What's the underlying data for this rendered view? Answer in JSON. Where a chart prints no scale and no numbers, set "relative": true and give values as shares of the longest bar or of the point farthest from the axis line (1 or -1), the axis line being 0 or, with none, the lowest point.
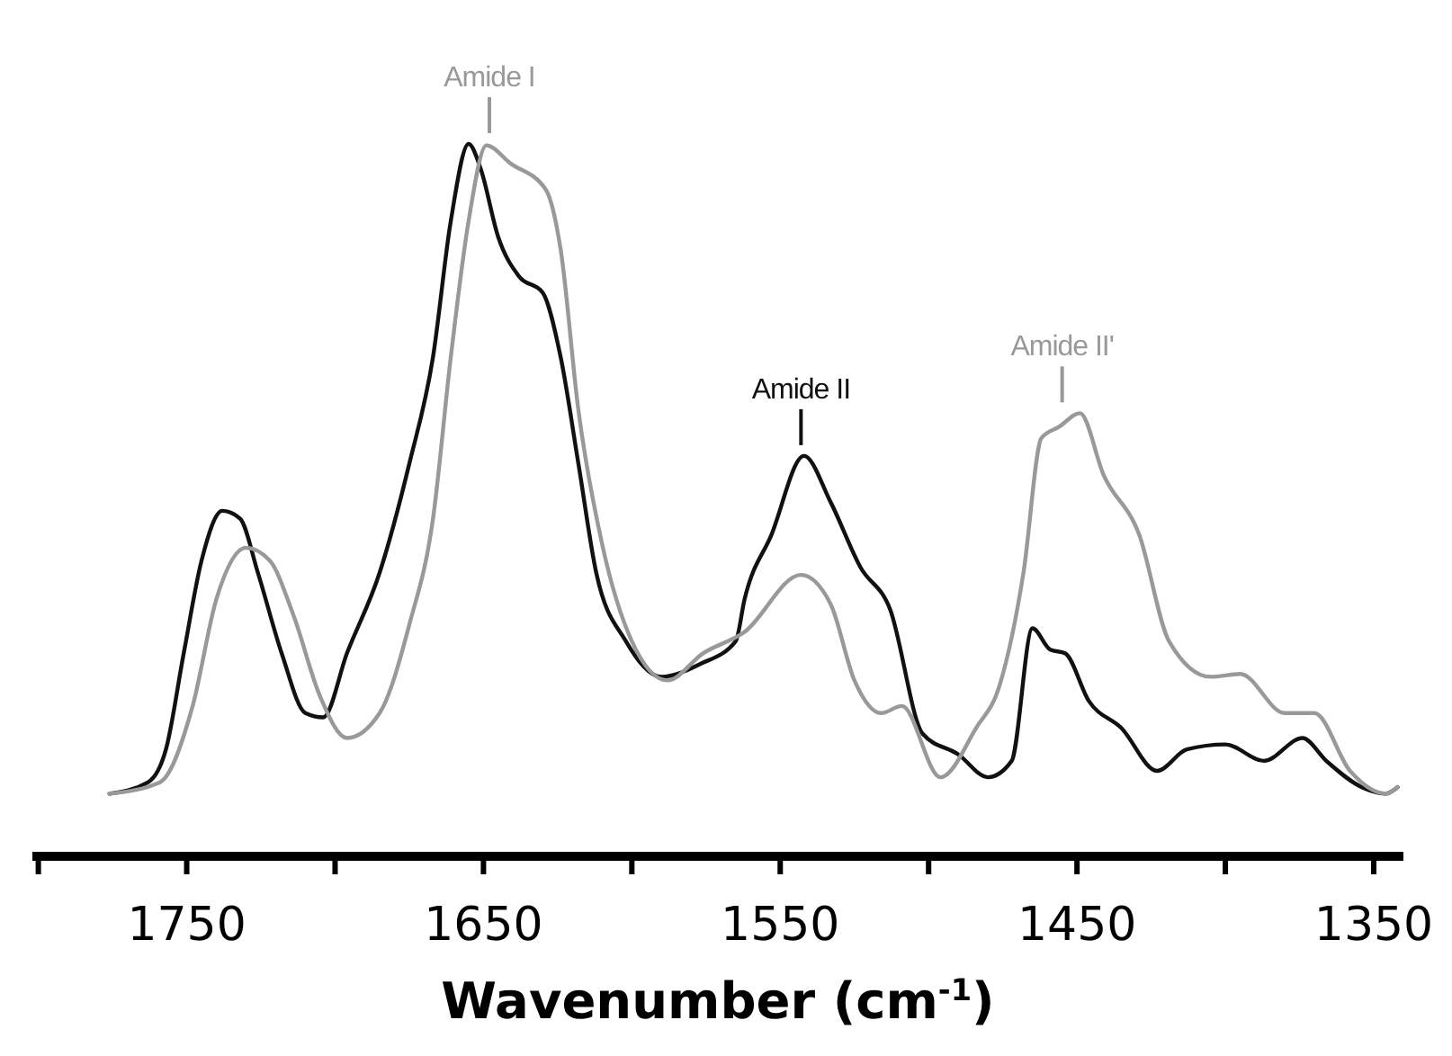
{
  "chart_data": {
    "type": "line",
    "relative": true,
    "xlabel": "Wavenumber (cm$^{-1}$)",
    "xlim": [
      1802,
      1340
    ],
    "xticks": [
      {
        "value": 1800,
        "label": null
      },
      1750,
      {
        "value": 1700,
        "label": null
      },
      1650,
      {
        "value": 1600,
        "label": null
      },
      1550,
      {
        "value": 1500,
        "label": null
      },
      1450,
      {
        "value": 1400,
        "label": null
      },
      1350
    ],
    "series": [
      {
        "color": "#111111",
        "x": [
          1776,
          1763,
          1757,
          1751,
          1745,
          1738,
          1732,
          1726,
          1718,
          1710,
          1704,
          1696,
          1685,
          1675,
          1667,
          1661,
          1655,
          1651,
          1645,
          1638,
          1630,
          1624,
          1618,
          1612,
          1602,
          1590,
          1577,
          1565,
          1562,
          1553,
          1542,
          1533,
          1523,
          1513,
          1502,
          1490,
          1480,
          1472,
          1465,
          1459,
          1454,
          1446,
          1435,
          1423,
          1413,
          1400,
          1387,
          1374,
          1366,
          1354,
          1346,
          1342
        ],
        "values": [
          0.088,
          0.104,
          0.15,
          0.285,
          0.415,
          0.485,
          0.474,
          0.398,
          0.285,
          0.201,
          0.195,
          0.285,
          0.398,
          0.551,
          0.701,
          0.892,
          1,
          0.966,
          0.869,
          0.814,
          0.791,
          0.701,
          0.551,
          0.398,
          0.302,
          0.252,
          0.27,
          0.302,
          0.361,
          0.451,
          0.562,
          0.497,
          0.406,
          0.347,
          0.172,
          0.143,
          0.111,
          0.134,
          0.32,
          0.29,
          0.285,
          0.218,
          0.18,
          0.12,
          0.15,
          0.157,
          0.134,
          0.166,
          0.134,
          0.097,
          0.088,
          0.097
        ]
      },
      {
        "color": "#999999",
        "x": [
          1776,
          1759,
          1748,
          1740,
          1730,
          1722,
          1714,
          1705,
          1696,
          1685,
          1675,
          1667,
          1661,
          1655,
          1649,
          1641,
          1629,
          1624,
          1618,
          1610,
          1600,
          1588,
          1576,
          1562,
          1543,
          1533,
          1525,
          1516,
          1509,
          1496,
          1484,
          1476,
          1468,
          1462,
          1456,
          1449,
          1441,
          1429,
          1419,
          1405,
          1395,
          1380,
          1370,
          1358,
          1346,
          1342
        ],
        "values": [
          0.088,
          0.104,
          0.211,
          0.361,
          0.433,
          0.415,
          0.338,
          0.224,
          0.166,
          0.201,
          0.325,
          0.474,
          0.701,
          0.892,
          0.998,
          0.973,
          0.936,
          0.852,
          0.626,
          0.438,
          0.302,
          0.247,
          0.285,
          0.315,
          0.395,
          0.354,
          0.247,
          0.201,
          0.211,
          0.111,
          0.18,
          0.241,
          0.399,
          0.587,
          0.603,
          0.622,
          0.535,
          0.451,
          0.302,
          0.252,
          0.256,
          0.201,
          0.201,
          0.12,
          0.088,
          0.097
        ]
      }
    ],
    "annotations": [
      {
        "text": "Amide I",
        "x": 1648,
        "y": 1
      },
      {
        "text": "Amide II",
        "x": 1543,
        "y": 0.562
      },
      {
        "text": "Amide II'",
        "x": 1455,
        "y": 0.622
      }
    ]
  }
}
